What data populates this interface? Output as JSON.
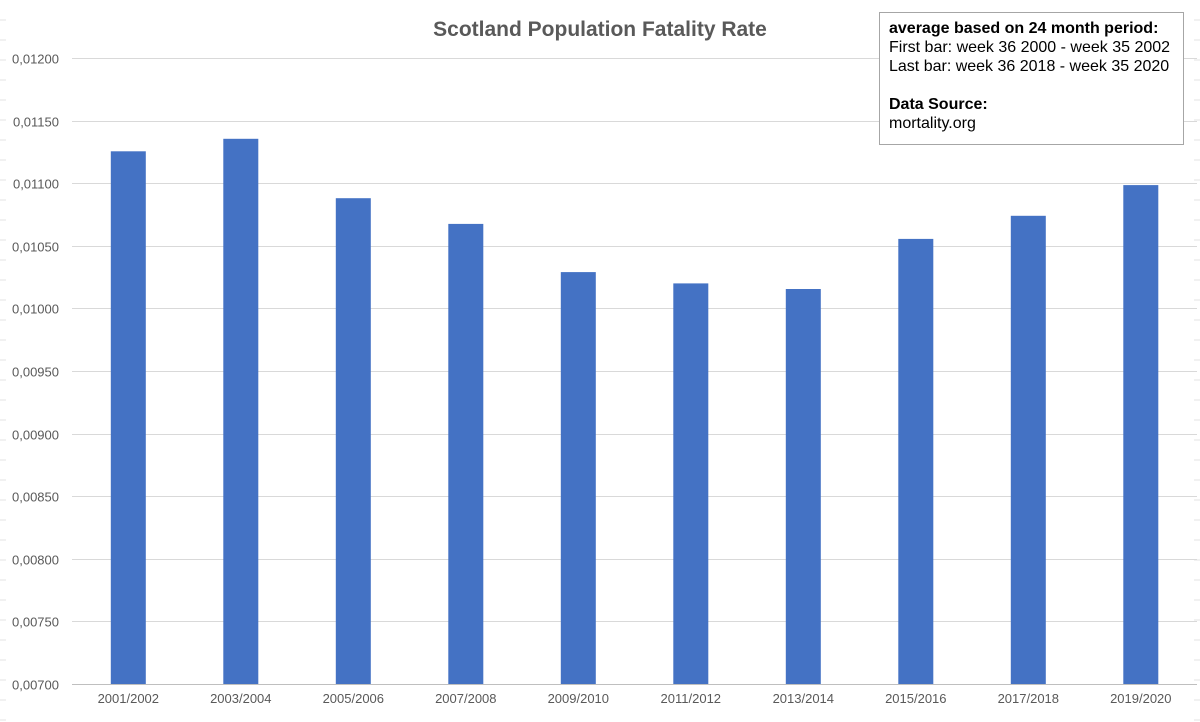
{
  "chart_data": {
    "type": "bar",
    "title": "Scotland Population Fatality Rate",
    "xlabel": "",
    "ylabel": "",
    "ylim": [
      0.007,
      0.012
    ],
    "y_ticks": [
      "0,00700",
      "0,00750",
      "0,00800",
      "0,00850",
      "0,00900",
      "0,00950",
      "0,01000",
      "0,01050",
      "0,01100",
      "0,01150",
      "0,01200"
    ],
    "categories": [
      "2001/2002",
      "2003/2004",
      "2005/2006",
      "2007/2008",
      "2009/2010",
      "2011/2012",
      "2013/2014",
      "2015/2016",
      "2017/2018",
      "2019/2020"
    ],
    "values": [
      0.011255,
      0.011355,
      0.01088,
      0.010675,
      0.01029,
      0.0102,
      0.010155,
      0.010555,
      0.01074,
      0.010985
    ],
    "bar_color": "#4472c4",
    "grid": true,
    "legend": "none"
  },
  "info_box": {
    "heading": "average based on 24 month period:",
    "line1": "First bar: week 36 2000  - week 35 2002",
    "line2": "Last bar: week 36 2018  - week 35 2020",
    "source_heading": "Data Source:",
    "source": "mortality.org"
  }
}
